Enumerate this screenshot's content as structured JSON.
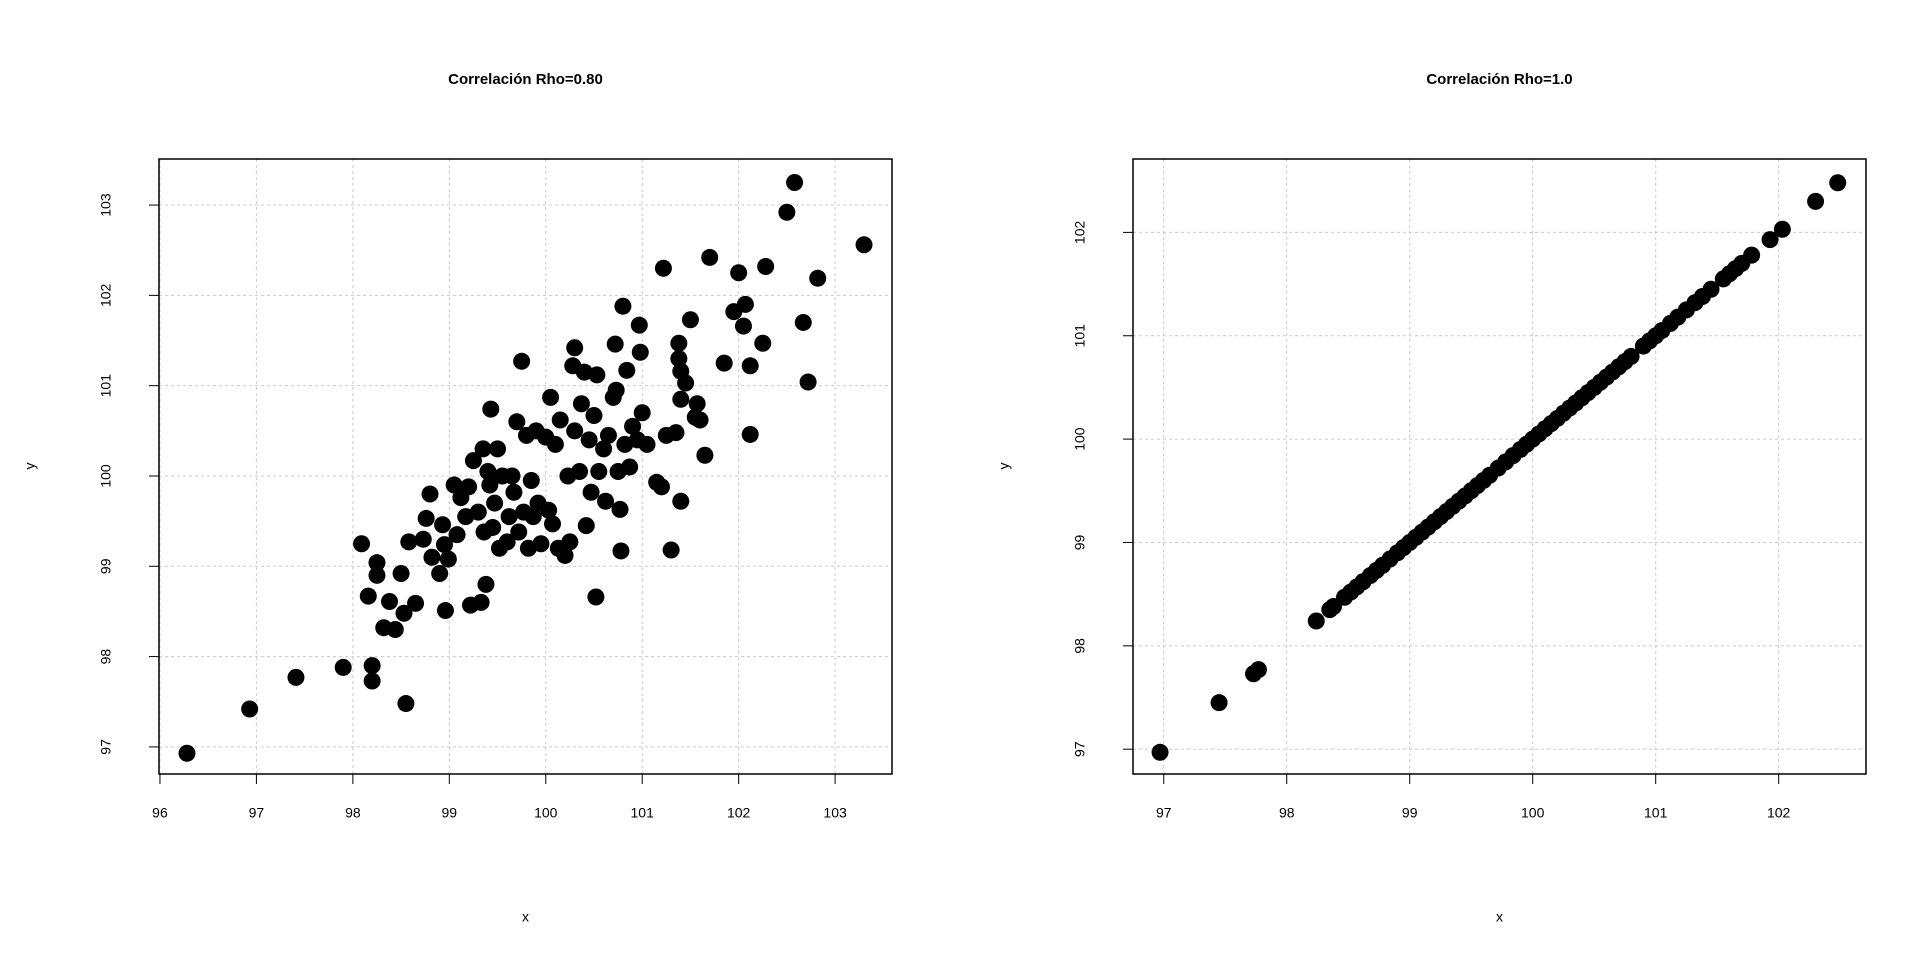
{
  "chart_data": [
    {
      "type": "scatter",
      "title": "Correlación Rho=0.80",
      "x_label": "x",
      "y_label": "y",
      "color": "#000000",
      "grid": true,
      "xlim": [
        95.99,
        103.59
      ],
      "ylim": [
        96.7,
        103.51
      ],
      "xticks": [
        96,
        97,
        98,
        99,
        100,
        101,
        102,
        103
      ],
      "yticks": [
        97,
        98,
        99,
        100,
        101,
        102,
        103
      ],
      "x": [
        96.28,
        96.93,
        97.41,
        97.9,
        98.09,
        98.16,
        98.2,
        98.2,
        98.25,
        98.25,
        98.32,
        98.38,
        98.44,
        98.5,
        98.53,
        98.55,
        98.58,
        98.65,
        98.73,
        98.76,
        98.8,
        98.82,
        98.9,
        98.93,
        98.95,
        98.96,
        98.99,
        99.05,
        99.08,
        99.12,
        99.17,
        99.2,
        99.22,
        99.25,
        99.3,
        99.33,
        99.35,
        99.36,
        99.38,
        99.4,
        99.42,
        99.43,
        99.45,
        99.47,
        99.5,
        99.52,
        99.55,
        99.6,
        99.62,
        99.65,
        99.67,
        99.7,
        99.72,
        99.75,
        99.77,
        99.8,
        99.82,
        99.85,
        99.87,
        99.9,
        99.92,
        99.95,
        100.0,
        100.03,
        100.05,
        100.07,
        100.1,
        100.13,
        100.15,
        100.2,
        100.23,
        100.25,
        100.28,
        100.3,
        100.3,
        100.35,
        100.37,
        100.4,
        100.42,
        100.45,
        100.47,
        100.5,
        100.52,
        100.53,
        100.55,
        100.6,
        100.62,
        100.65,
        100.7,
        100.72,
        100.73,
        100.75,
        100.77,
        100.78,
        100.8,
        100.82,
        100.84,
        100.87,
        100.9,
        100.95,
        100.97,
        100.98,
        101.0,
        101.05,
        101.15,
        101.2,
        101.22,
        101.25,
        101.3,
        101.35,
        101.38,
        101.38,
        101.4,
        101.4,
        101.4,
        101.45,
        101.5,
        101.55,
        101.57,
        101.6,
        101.65,
        101.7,
        101.85,
        101.95,
        102.0,
        102.05,
        102.07,
        102.12,
        102.12,
        102.25,
        102.28,
        102.5,
        102.58,
        102.67,
        102.72,
        102.82,
        103.3
      ],
      "y": [
        96.93,
        97.42,
        97.77,
        97.88,
        99.25,
        98.67,
        97.9,
        97.73,
        99.04,
        98.9,
        98.32,
        98.61,
        98.3,
        98.92,
        98.48,
        97.48,
        99.27,
        98.59,
        99.3,
        99.53,
        99.8,
        99.1,
        98.92,
        99.46,
        99.24,
        98.51,
        99.08,
        99.9,
        99.35,
        99.76,
        99.55,
        99.88,
        98.57,
        100.17,
        99.6,
        98.6,
        100.3,
        99.38,
        98.8,
        100.05,
        99.9,
        100.74,
        99.43,
        99.7,
        100.3,
        99.2,
        100.0,
        99.27,
        99.55,
        100.0,
        99.82,
        100.6,
        99.38,
        101.27,
        99.6,
        100.45,
        99.2,
        99.95,
        99.55,
        100.5,
        99.7,
        99.25,
        100.43,
        99.62,
        100.87,
        99.47,
        100.35,
        99.2,
        100.62,
        99.12,
        100.0,
        99.27,
        101.22,
        100.5,
        101.42,
        100.05,
        100.8,
        101.15,
        99.45,
        100.4,
        99.82,
        100.67,
        98.66,
        101.12,
        100.05,
        100.3,
        99.72,
        100.45,
        100.87,
        101.46,
        100.95,
        100.05,
        99.63,
        99.17,
        101.88,
        100.35,
        101.17,
        100.1,
        100.55,
        100.4,
        101.67,
        101.37,
        100.7,
        100.35,
        99.93,
        99.88,
        102.3,
        100.45,
        99.18,
        100.48,
        101.47,
        101.3,
        101.16,
        100.85,
        99.72,
        101.03,
        101.73,
        100.65,
        100.8,
        100.62,
        100.23,
        102.42,
        101.25,
        101.82,
        102.25,
        101.66,
        101.9,
        101.22,
        100.46,
        101.47,
        102.32,
        102.92,
        103.25,
        101.7,
        101.04,
        102.19,
        102.56
      ]
    },
    {
      "type": "scatter",
      "title": "Correlación Rho=1.0",
      "x_label": "x",
      "y_label": "y",
      "color": "#000000",
      "grid": true,
      "xlim": [
        96.75,
        102.71
      ],
      "ylim": [
        96.76,
        102.71
      ],
      "xticks": [
        97,
        98,
        99,
        100,
        101,
        102
      ],
      "yticks": [
        97,
        98,
        99,
        100,
        101,
        102
      ],
      "x": [
        96.97,
        97.45,
        97.73,
        97.77,
        98.24,
        98.35,
        98.38,
        98.47,
        98.52,
        98.57,
        98.62,
        98.68,
        98.73,
        98.78,
        98.84,
        98.9,
        98.95,
        99.0,
        99.05,
        99.1,
        99.15,
        99.2,
        99.25,
        99.3,
        99.35,
        99.4,
        99.45,
        99.5,
        99.55,
        99.6,
        99.65,
        99.72,
        99.78,
        99.84,
        99.9,
        99.95,
        100.0,
        100.05,
        100.1,
        100.15,
        100.2,
        100.25,
        100.3,
        100.35,
        100.4,
        100.45,
        100.5,
        100.55,
        100.6,
        100.65,
        100.7,
        100.75,
        100.8,
        100.9,
        100.95,
        101.0,
        101.05,
        101.12,
        101.18,
        101.25,
        101.32,
        101.38,
        101.45,
        101.55,
        101.6,
        101.65,
        101.7,
        101.78,
        101.93,
        102.03,
        102.3,
        102.48
      ],
      "y": [
        96.97,
        97.45,
        97.73,
        97.77,
        98.24,
        98.35,
        98.38,
        98.47,
        98.52,
        98.57,
        98.62,
        98.68,
        98.73,
        98.78,
        98.84,
        98.9,
        98.95,
        99.0,
        99.05,
        99.1,
        99.15,
        99.2,
        99.25,
        99.3,
        99.35,
        99.4,
        99.45,
        99.5,
        99.55,
        99.6,
        99.65,
        99.72,
        99.78,
        99.84,
        99.9,
        99.95,
        100.0,
        100.05,
        100.1,
        100.15,
        100.2,
        100.25,
        100.3,
        100.35,
        100.4,
        100.45,
        100.5,
        100.55,
        100.6,
        100.65,
        100.7,
        100.75,
        100.8,
        100.9,
        100.95,
        101.0,
        101.05,
        101.12,
        101.18,
        101.25,
        101.32,
        101.38,
        101.45,
        101.55,
        101.6,
        101.65,
        101.7,
        101.78,
        101.93,
        102.03,
        102.3,
        102.48
      ]
    }
  ]
}
